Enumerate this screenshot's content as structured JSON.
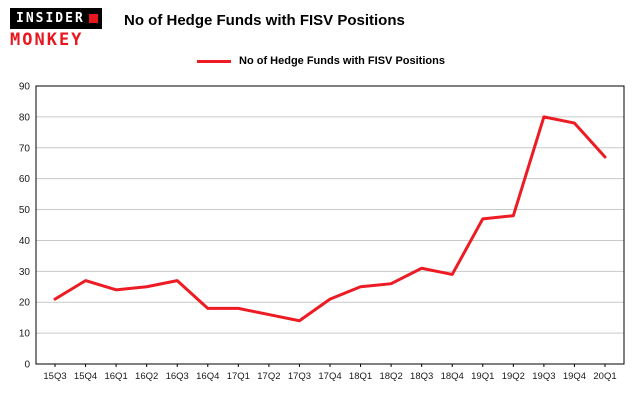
{
  "logo": {
    "line1": "INSIDER",
    "line2": "MONKEY"
  },
  "header": {
    "title": "No of Hedge Funds with FISV Positions"
  },
  "legend": {
    "label": "No of Hedge Funds with FISV Positions"
  },
  "colors": {
    "line_red": "#ed1c24",
    "logo_red": "#e8171f",
    "grid_gray": "#c9c9c9"
  },
  "chart_data": {
    "type": "line",
    "title": "No of Hedge Funds with FISV Positions",
    "legend": "No of Hedge Funds with FISV Positions",
    "categories": [
      "15Q3",
      "15Q4",
      "16Q1",
      "16Q2",
      "16Q3",
      "16Q4",
      "17Q1",
      "17Q2",
      "17Q3",
      "17Q4",
      "18Q1",
      "18Q2",
      "18Q3",
      "18Q4",
      "19Q1",
      "19Q2",
      "19Q3",
      "19Q4",
      "20Q1"
    ],
    "series": [
      {
        "name": "No of Hedge Funds with FISV Positions",
        "values": [
          21,
          27,
          24,
          25,
          27,
          18,
          18,
          16,
          14,
          21,
          25,
          26,
          31,
          29,
          47,
          48,
          80,
          78,
          67
        ]
      }
    ],
    "xlabel": "",
    "ylabel": "",
    "ylim": [
      0,
      90
    ],
    "yticks": [
      0,
      10,
      20,
      30,
      40,
      50,
      60,
      70,
      80,
      90
    ],
    "grid": true,
    "legend_position": "top",
    "line_color": "#ed1c24"
  }
}
